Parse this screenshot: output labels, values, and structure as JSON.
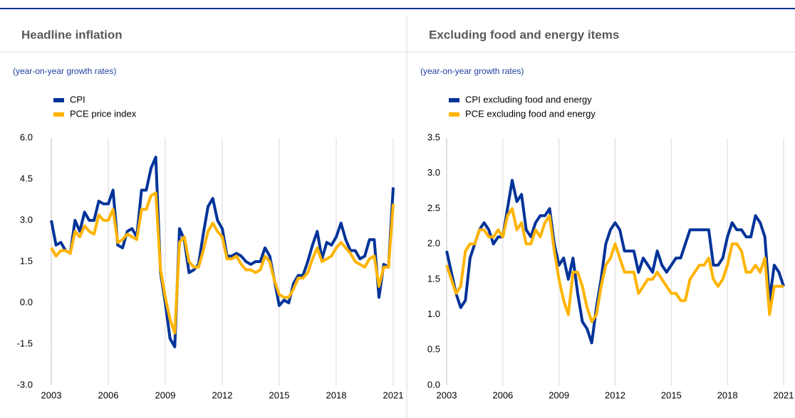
{
  "chart_data": [
    {
      "type": "line",
      "title": "Headline inflation",
      "subtitle": "(year-on-year growth rates)",
      "x": [
        2003,
        2003.25,
        2003.5,
        2003.75,
        2004,
        2004.25,
        2004.5,
        2004.75,
        2005,
        2005.25,
        2005.5,
        2005.75,
        2006,
        2006.25,
        2006.5,
        2006.75,
        2007,
        2007.25,
        2007.5,
        2007.75,
        2008,
        2008.25,
        2008.5,
        2008.75,
        2009,
        2009.25,
        2009.5,
        2009.75,
        2010,
        2010.25,
        2010.5,
        2010.75,
        2011,
        2011.25,
        2011.5,
        2011.75,
        2012,
        2012.25,
        2012.5,
        2012.75,
        2013,
        2013.25,
        2013.5,
        2013.75,
        2014,
        2014.25,
        2014.5,
        2014.75,
        2015,
        2015.25,
        2015.5,
        2015.75,
        2016,
        2016.25,
        2016.5,
        2016.75,
        2017,
        2017.25,
        2017.5,
        2017.75,
        2018,
        2018.25,
        2018.5,
        2018.75,
        2019,
        2019.25,
        2019.5,
        2019.75,
        2020,
        2020.25,
        2020.5,
        2020.75,
        2021
      ],
      "series": [
        {
          "name": "CPI",
          "color": "#003399",
          "values": [
            3.0,
            2.1,
            2.2,
            1.9,
            1.8,
            3.0,
            2.6,
            3.3,
            3.0,
            3.0,
            3.7,
            3.6,
            3.6,
            4.1,
            2.1,
            2.0,
            2.6,
            2.7,
            2.4,
            4.1,
            4.1,
            4.9,
            5.3,
            1.1,
            0.0,
            -1.3,
            -1.6,
            2.7,
            2.3,
            1.1,
            1.2,
            1.4,
            2.5,
            3.5,
            3.8,
            3.0,
            2.7,
            1.7,
            1.7,
            1.8,
            1.7,
            1.5,
            1.4,
            1.5,
            1.5,
            2.0,
            1.7,
            0.8,
            -0.1,
            0.1,
            0.0,
            0.7,
            1.0,
            1.0,
            1.5,
            2.1,
            2.6,
            1.6,
            2.2,
            2.1,
            2.4,
            2.9,
            2.3,
            1.9,
            1.9,
            1.6,
            1.7,
            2.3,
            2.3,
            0.2,
            1.4,
            1.3,
            4.2
          ]
        },
        {
          "name": "PCE price index",
          "color": "#ffb400",
          "values": [
            2.0,
            1.7,
            1.9,
            1.9,
            1.8,
            2.6,
            2.4,
            2.8,
            2.6,
            2.5,
            3.2,
            3.0,
            3.0,
            3.4,
            2.2,
            2.3,
            2.5,
            2.4,
            2.3,
            3.4,
            3.4,
            3.9,
            4.0,
            1.2,
            0.2,
            -0.6,
            -1.1,
            2.2,
            2.4,
            1.5,
            1.3,
            1.3,
            1.9,
            2.6,
            2.9,
            2.6,
            2.4,
            1.6,
            1.6,
            1.7,
            1.4,
            1.2,
            1.2,
            1.1,
            1.2,
            1.7,
            1.5,
            0.8,
            0.3,
            0.2,
            0.2,
            0.5,
            0.9,
            0.9,
            1.1,
            1.6,
            2.0,
            1.5,
            1.6,
            1.7,
            2.0,
            2.2,
            2.0,
            1.8,
            1.5,
            1.4,
            1.3,
            1.6,
            1.7,
            0.6,
            1.3,
            1.3,
            3.6
          ]
        }
      ],
      "xlim": [
        2003,
        2021
      ],
      "xticks": [
        2003,
        2006,
        2009,
        2012,
        2015,
        2018,
        2021
      ],
      "ylim": [
        -3,
        6
      ],
      "yticks": [
        {
          "value": -3,
          "label": "-3.0"
        },
        -1.5,
        {
          "value": 0,
          "label": "0.0"
        },
        1.5,
        {
          "value": 3,
          "label": "3.0"
        },
        4.5,
        {
          "value": 6,
          "label": "6.0"
        }
      ],
      "grid": true
    },
    {
      "type": "line",
      "title": "Excluding food and energy items",
      "subtitle": "(year-on-year growth rates)",
      "x": [
        2003,
        2003.25,
        2003.5,
        2003.75,
        2004,
        2004.25,
        2004.5,
        2004.75,
        2005,
        2005.25,
        2005.5,
        2005.75,
        2006,
        2006.25,
        2006.5,
        2006.75,
        2007,
        2007.25,
        2007.5,
        2007.75,
        2008,
        2008.25,
        2008.5,
        2008.75,
        2009,
        2009.25,
        2009.5,
        2009.75,
        2010,
        2010.25,
        2010.5,
        2010.75,
        2011,
        2011.25,
        2011.5,
        2011.75,
        2012,
        2012.25,
        2012.5,
        2012.75,
        2013,
        2013.25,
        2013.5,
        2013.75,
        2014,
        2014.25,
        2014.5,
        2014.75,
        2015,
        2015.25,
        2015.5,
        2015.75,
        2016,
        2016.25,
        2016.5,
        2016.75,
        2017,
        2017.25,
        2017.5,
        2017.75,
        2018,
        2018.25,
        2018.5,
        2018.75,
        2019,
        2019.25,
        2019.5,
        2019.75,
        2020,
        2020.25,
        2020.5,
        2020.75,
        2021
      ],
      "series": [
        {
          "name": "CPI excluding food and energy",
          "color": "#003399",
          "values": [
            1.9,
            1.6,
            1.3,
            1.1,
            1.2,
            1.8,
            2.0,
            2.2,
            2.3,
            2.2,
            2.0,
            2.1,
            2.1,
            2.5,
            2.9,
            2.6,
            2.7,
            2.2,
            2.1,
            2.3,
            2.4,
            2.4,
            2.5,
            2.0,
            1.7,
            1.8,
            1.5,
            1.8,
            1.3,
            0.9,
            0.8,
            0.6,
            1.1,
            1.5,
            2.0,
            2.2,
            2.3,
            2.2,
            1.9,
            1.9,
            1.9,
            1.6,
            1.8,
            1.7,
            1.6,
            1.9,
            1.7,
            1.6,
            1.7,
            1.8,
            1.8,
            2.0,
            2.2,
            2.2,
            2.2,
            2.2,
            2.2,
            1.7,
            1.7,
            1.8,
            2.1,
            2.3,
            2.2,
            2.2,
            2.1,
            2.1,
            2.4,
            2.3,
            2.1,
            1.2,
            1.7,
            1.6,
            1.4
          ]
        },
        {
          "name": "PCE excluding food and energy",
          "color": "#ffb400",
          "values": [
            1.7,
            1.5,
            1.3,
            1.4,
            1.9,
            2.0,
            2.0,
            2.2,
            2.2,
            2.1,
            2.1,
            2.2,
            2.1,
            2.4,
            2.5,
            2.2,
            2.3,
            2.0,
            2.0,
            2.2,
            2.1,
            2.3,
            2.4,
            1.9,
            1.5,
            1.2,
            1.0,
            1.6,
            1.6,
            1.4,
            1.1,
            0.9,
            1.0,
            1.4,
            1.7,
            1.8,
            2.0,
            1.8,
            1.6,
            1.6,
            1.6,
            1.3,
            1.4,
            1.5,
            1.5,
            1.6,
            1.5,
            1.4,
            1.3,
            1.3,
            1.2,
            1.2,
            1.5,
            1.6,
            1.7,
            1.7,
            1.8,
            1.5,
            1.4,
            1.5,
            1.7,
            2.0,
            2.0,
            1.9,
            1.6,
            1.6,
            1.7,
            1.6,
            1.8,
            1.0,
            1.4,
            1.4,
            1.4
          ]
        }
      ],
      "xlim": [
        2003,
        2021
      ],
      "xticks": [
        2003,
        2006,
        2009,
        2012,
        2015,
        2018,
        2021
      ],
      "ylim": [
        0,
        3.5
      ],
      "yticks": [
        {
          "value": 0,
          "label": "0.0"
        },
        0.5,
        {
          "value": 1,
          "label": "1.0"
        },
        1.5,
        {
          "value": 2,
          "label": "2.0"
        },
        2.5,
        {
          "value": 3,
          "label": "3.0"
        },
        3.5
      ],
      "grid": true
    }
  ]
}
